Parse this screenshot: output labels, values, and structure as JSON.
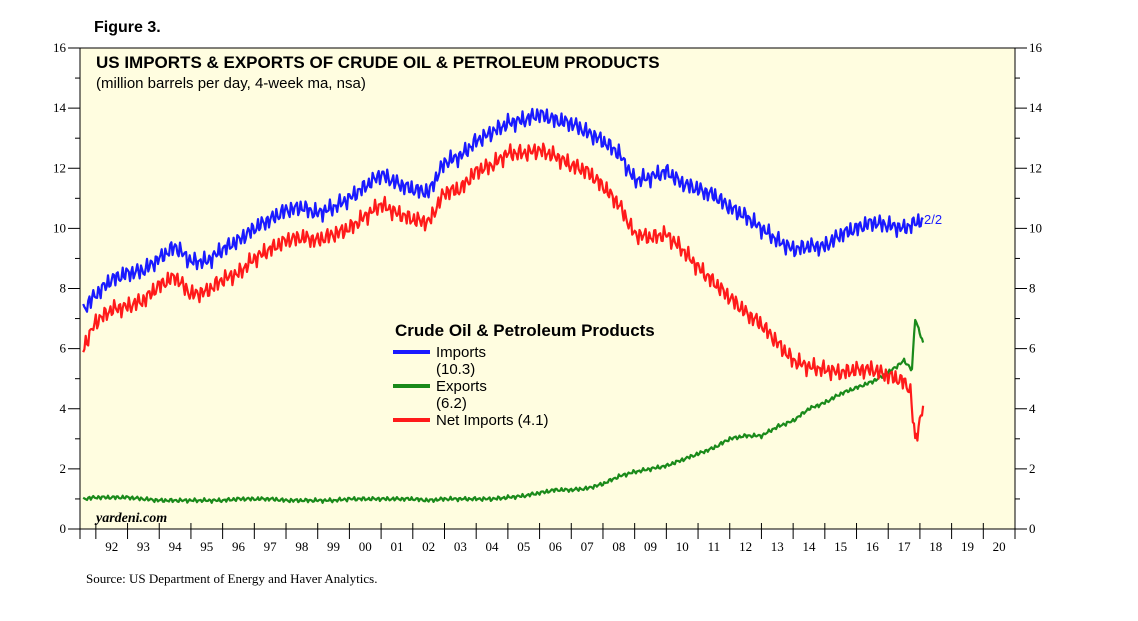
{
  "figure_label": "Figure 3.",
  "source": "Source: US Department of Energy and Haver Analytics.",
  "watermark": "yardeni.com",
  "colors": {
    "plot_bg": "#fffde0",
    "imports": "#1a1aff",
    "exports": "#1a8a1a",
    "net_imports": "#ff1a1a"
  },
  "chart_data": {
    "type": "line",
    "title": "US IMPORTS & EXPORTS OF CRUDE OIL & PETROLEUM PRODUCTS",
    "subtitle": "(million barrels per day, 4-week ma, nsa)",
    "xlim": [
      1991.5,
      2021.0
    ],
    "ylim": [
      0,
      16
    ],
    "y_ticks": [
      0,
      2,
      4,
      6,
      8,
      10,
      12,
      14,
      16
    ],
    "x_tick_labels": [
      "92",
      "93",
      "94",
      "95",
      "96",
      "97",
      "98",
      "99",
      "00",
      "01",
      "02",
      "03",
      "04",
      "05",
      "06",
      "07",
      "08",
      "09",
      "10",
      "11",
      "12",
      "13",
      "14",
      "15",
      "16",
      "17",
      "18",
      "19",
      "20"
    ],
    "x_tick_years": [
      1992,
      1993,
      1994,
      1995,
      1996,
      1997,
      1998,
      1999,
      2000,
      2001,
      2002,
      2003,
      2004,
      2005,
      2006,
      2007,
      2008,
      2009,
      2010,
      2011,
      2012,
      2013,
      2014,
      2015,
      2016,
      2017,
      2018,
      2019,
      2020
    ],
    "end_label": "2/2",
    "legend": {
      "title": "Crude Oil & Petroleum Products",
      "entries": [
        {
          "key": "imports",
          "line1": "Imports",
          "line2": "(10.3)"
        },
        {
          "key": "exports",
          "line1": "Exports",
          "line2": "(6.2)"
        },
        {
          "key": "net_imports",
          "line1": "Net Imports (4.1)",
          "line2": ""
        }
      ]
    },
    "series": [
      {
        "name": "Imports",
        "key": "imports",
        "x": [
          1991.6,
          1992.0,
          1992.5,
          1993.0,
          1993.5,
          1994.0,
          1994.5,
          1995.0,
          1995.5,
          1996.0,
          1996.5,
          1997.0,
          1997.5,
          1998.0,
          1998.5,
          1999.0,
          1999.5,
          2000.0,
          2000.5,
          2001.0,
          2001.5,
          2002.0,
          2002.5,
          2003.0,
          2003.5,
          2004.0,
          2004.5,
          2005.0,
          2005.5,
          2006.0,
          2006.5,
          2007.0,
          2007.5,
          2008.0,
          2008.5,
          2009.0,
          2009.5,
          2010.0,
          2010.5,
          2011.0,
          2011.5,
          2012.0,
          2012.5,
          2013.0,
          2013.5,
          2014.0,
          2014.5,
          2015.0,
          2015.5,
          2016.0,
          2016.5,
          2017.0,
          2017.5,
          2018.1
        ],
        "values": [
          7.3,
          7.8,
          8.3,
          8.5,
          8.6,
          9.0,
          9.4,
          8.9,
          8.9,
          9.3,
          9.6,
          10.0,
          10.3,
          10.6,
          10.7,
          10.5,
          10.7,
          11.0,
          11.4,
          11.8,
          11.5,
          11.3,
          11.2,
          12.2,
          12.4,
          12.9,
          13.2,
          13.5,
          13.6,
          13.8,
          13.6,
          13.5,
          13.2,
          12.9,
          12.5,
          11.6,
          11.7,
          11.9,
          11.5,
          11.3,
          11.1,
          10.7,
          10.4,
          10.0,
          9.6,
          9.3,
          9.4,
          9.4,
          9.8,
          10.0,
          10.2,
          10.1,
          10.0,
          10.3
        ]
      },
      {
        "name": "Exports",
        "key": "exports",
        "x": [
          1991.6,
          1992.0,
          1992.5,
          1993.0,
          1993.5,
          1994.0,
          1994.5,
          1995.0,
          1995.5,
          1996.0,
          1996.5,
          1997.0,
          1997.5,
          1998.0,
          1998.5,
          1999.0,
          1999.5,
          2000.0,
          2000.5,
          2001.0,
          2001.5,
          2002.0,
          2002.5,
          2003.0,
          2003.5,
          2004.0,
          2004.5,
          2005.0,
          2005.5,
          2006.0,
          2006.5,
          2007.0,
          2007.5,
          2008.0,
          2008.5,
          2009.0,
          2009.5,
          2010.0,
          2010.5,
          2011.0,
          2011.5,
          2012.0,
          2012.5,
          2013.0,
          2013.5,
          2014.0,
          2014.5,
          2015.0,
          2015.5,
          2016.0,
          2016.5,
          2017.0,
          2017.5,
          2017.75,
          2017.85,
          2018.1
        ],
        "values": [
          1.0,
          1.05,
          1.05,
          1.05,
          1.0,
          0.95,
          0.95,
          0.95,
          0.95,
          0.95,
          1.0,
          1.0,
          1.0,
          0.95,
          0.95,
          0.95,
          0.95,
          1.0,
          1.0,
          1.0,
          1.0,
          1.0,
          0.95,
          1.0,
          1.0,
          1.0,
          1.0,
          1.05,
          1.1,
          1.2,
          1.3,
          1.3,
          1.35,
          1.5,
          1.75,
          1.9,
          2.0,
          2.1,
          2.3,
          2.5,
          2.7,
          3.0,
          3.1,
          3.1,
          3.4,
          3.6,
          4.0,
          4.2,
          4.5,
          4.7,
          4.9,
          5.2,
          5.6,
          5.3,
          7.0,
          6.2
        ]
      },
      {
        "name": "Net Imports",
        "key": "net_imports",
        "x": [
          1991.6,
          1992.0,
          1992.5,
          1993.0,
          1993.5,
          1994.0,
          1994.5,
          1995.0,
          1995.5,
          1996.0,
          1996.5,
          1997.0,
          1997.5,
          1998.0,
          1998.5,
          1999.0,
          1999.5,
          2000.0,
          2000.5,
          2001.0,
          2001.5,
          2002.0,
          2002.5,
          2003.0,
          2003.5,
          2004.0,
          2004.5,
          2005.0,
          2005.5,
          2006.0,
          2006.5,
          2007.0,
          2007.5,
          2008.0,
          2008.5,
          2009.0,
          2009.5,
          2010.0,
          2010.5,
          2011.0,
          2011.5,
          2012.0,
          2012.5,
          2013.0,
          2013.5,
          2014.0,
          2014.5,
          2015.0,
          2015.5,
          2016.0,
          2016.5,
          2017.0,
          2017.5,
          2017.7,
          2017.85,
          2018.1
        ],
        "values": [
          6.0,
          6.9,
          7.3,
          7.4,
          7.6,
          8.1,
          8.4,
          7.8,
          7.9,
          8.3,
          8.5,
          9.0,
          9.3,
          9.6,
          9.7,
          9.6,
          9.8,
          10.0,
          10.4,
          10.8,
          10.5,
          10.3,
          10.2,
          11.2,
          11.3,
          11.9,
          12.1,
          12.5,
          12.5,
          12.6,
          12.4,
          12.1,
          11.9,
          11.4,
          10.8,
          9.8,
          9.7,
          9.8,
          9.3,
          8.7,
          8.2,
          7.7,
          7.2,
          6.8,
          6.2,
          5.6,
          5.4,
          5.3,
          5.2,
          5.3,
          5.3,
          5.1,
          4.9,
          4.6,
          2.9,
          4.1
        ]
      }
    ]
  }
}
